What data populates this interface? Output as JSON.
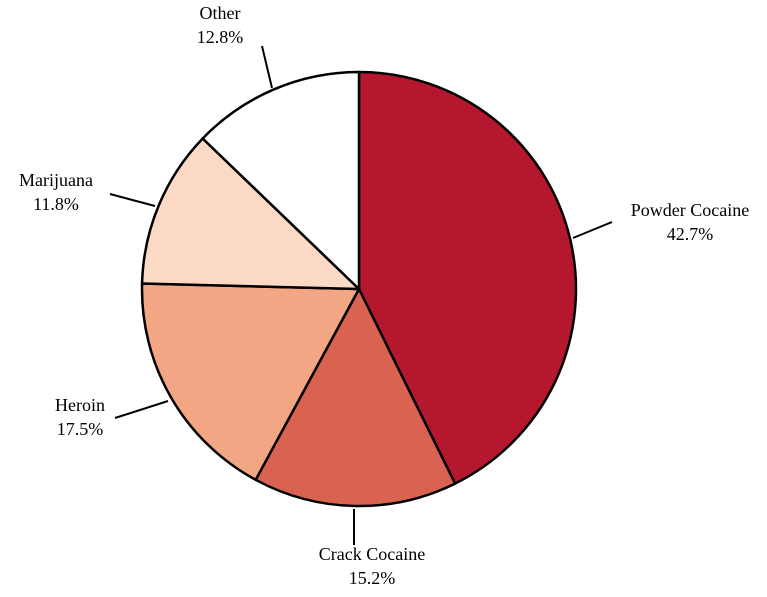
{
  "chart_data": {
    "type": "pie",
    "title": "",
    "start": "12 o'clock",
    "direction": "clockwise",
    "slices": [
      {
        "label": "Powder Cocaine",
        "value": 42.7,
        "display": "42.7%",
        "color": "#b5182e"
      },
      {
        "label": "Crack Cocaine",
        "value": 15.2,
        "display": "15.2%",
        "color": "#d96350"
      },
      {
        "label": "Heroin",
        "value": 17.5,
        "display": "17.5%",
        "color": "#f2a683"
      },
      {
        "label": "Marijuana",
        "value": 11.8,
        "display": "11.8%",
        "color": "#fcd9c4"
      },
      {
        "label": "Other",
        "value": 12.8,
        "display": "12.8%",
        "color": "#ffffff"
      }
    ]
  }
}
